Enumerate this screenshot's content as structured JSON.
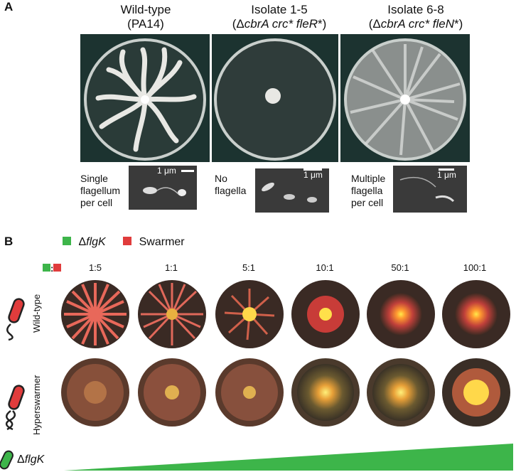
{
  "panel_a": {
    "letter": "A",
    "columns": [
      {
        "title_line1": "Wild-type",
        "title_line2": "(PA14)",
        "caption": [
          "Single",
          "flagellum",
          "per cell"
        ],
        "scale": "1 μm"
      },
      {
        "title_line1": "Isolate 1-5",
        "title_line2_parts": [
          "(Δ",
          "cbrA crc* fleR",
          "*)"
        ],
        "caption": [
          "No",
          "flagella"
        ],
        "scale": "1 μm"
      },
      {
        "title_line1": "Isolate 6-8",
        "title_line2_parts": [
          "(Δ",
          "cbrA crc* fleN",
          "*)"
        ],
        "caption": [
          "Multiple",
          "flagella",
          "per cell"
        ],
        "scale": "1 μm"
      }
    ]
  },
  "panel_b": {
    "letter": "B",
    "legend": {
      "flgk_prefix": "Δ",
      "flgk": "flgK",
      "swarmer": "Swarmer"
    },
    "ratio_colon": ":",
    "ratios": [
      "1:5",
      "1:1",
      "5:1",
      "10:1",
      "50:1",
      "100:1"
    ],
    "rows": [
      "Wild-type",
      "Hyperswarmer"
    ],
    "gradient_label_prefix": "Δ",
    "gradient_label": "flgK"
  },
  "colors": {
    "green": "#3db54a",
    "red": "#e03c3c",
    "plate_bg": "#1c3330"
  }
}
